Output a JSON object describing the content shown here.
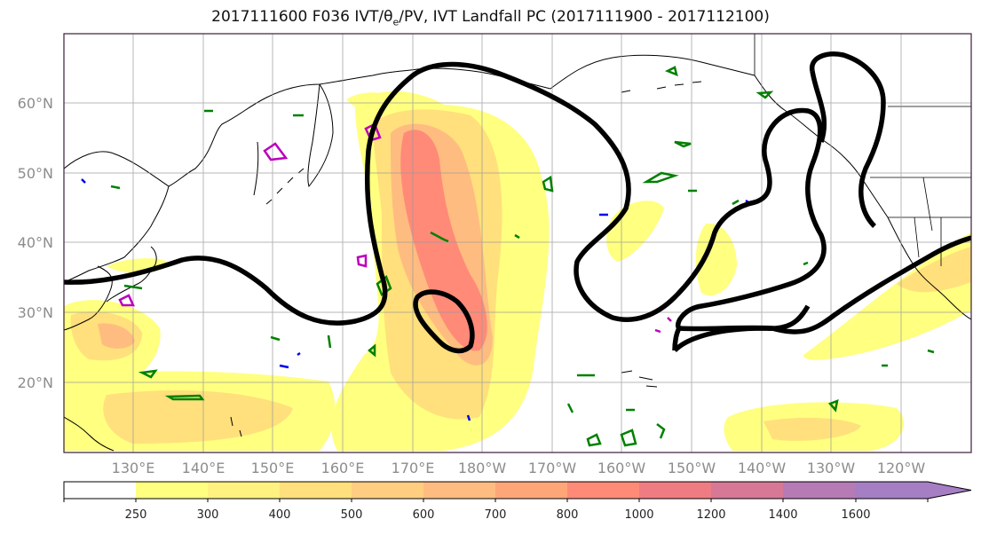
{
  "title": {
    "prefix": "2017111600 F036 IVT/",
    "theta": "θ",
    "theta_sub": "e",
    "suffix": "/PV, IVT Landfall PC (2017111900 - 2017112100)"
  },
  "map": {
    "lat_labels": [
      "60°N",
      "50°N",
      "40°N",
      "30°N",
      "20°N"
    ],
    "lon_labels": [
      "130°E",
      "140°E",
      "150°E",
      "160°E",
      "170°E",
      "180°W",
      "170°W",
      "160°W",
      "150°W",
      "140°W",
      "130°W",
      "120°W"
    ],
    "lat_range": [
      10,
      70
    ],
    "lon_range_east": [
      120,
      250
    ]
  },
  "colorbar": {
    "levels": [
      "250",
      "300",
      "400",
      "500",
      "600",
      "700",
      "800",
      "1000",
      "1200",
      "1400",
      "1600"
    ],
    "colors": [
      "#ffffff",
      "#ffff80",
      "#fff280",
      "#ffe07c",
      "#ffce80",
      "#ffbc80",
      "#ffa678",
      "#ff8a78",
      "#ef7c82",
      "#d67896",
      "#b67ab4",
      "#a57ec4"
    ],
    "extend": "max"
  },
  "colors": {
    "ivt_contour": "#000000",
    "pv_positive": "#008000",
    "pv_negative": "#0000ee",
    "theta_e": "#bb00bb"
  }
}
